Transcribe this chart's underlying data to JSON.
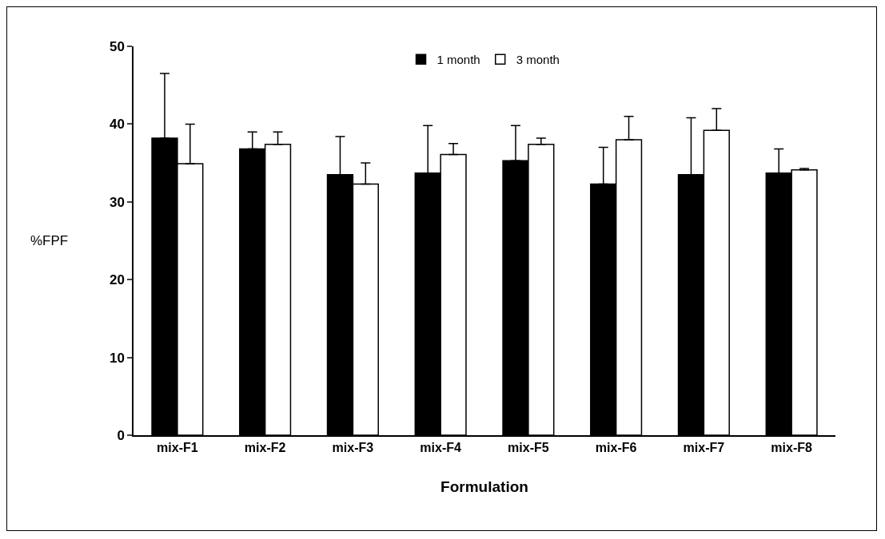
{
  "chart_data": {
    "type": "bar",
    "xlabel": "Formulation",
    "ylabel": "%FPF",
    "categories": [
      "mix-F1",
      "mix-F2",
      "mix-F3",
      "mix-F4",
      "mix-F5",
      "mix-F6",
      "mix-F7",
      "mix-F8"
    ],
    "series": [
      {
        "name": "1 month",
        "color": "#000000",
        "values": [
          38.2,
          36.8,
          33.5,
          33.7,
          35.3,
          32.3,
          33.5,
          33.7
        ],
        "errors": [
          [
            38.2,
            46.5
          ],
          [
            36.8,
            39.0
          ],
          [
            33.5,
            38.4
          ],
          [
            33.7,
            39.8
          ],
          [
            35.3,
            39.8
          ],
          [
            32.3,
            37.0
          ],
          [
            33.5,
            40.8
          ],
          [
            33.7,
            36.8
          ]
        ]
      },
      {
        "name": "3 month",
        "color": "#ffffff",
        "values": [
          34.9,
          37.4,
          32.3,
          36.1,
          37.4,
          38.0,
          39.2,
          34.1
        ],
        "errors": [
          [
            34.9,
            40.0
          ],
          [
            37.4,
            39.0
          ],
          [
            32.3,
            35.0
          ],
          [
            36.1,
            37.5
          ],
          [
            37.4,
            38.2
          ],
          [
            38.0,
            41.0
          ],
          [
            39.2,
            42.0
          ],
          [
            34.1,
            34.3
          ]
        ]
      }
    ],
    "ylim": [
      0,
      50
    ],
    "yticks": [
      0,
      10,
      20,
      30,
      40,
      50
    ],
    "grid": false,
    "legend": "top"
  }
}
